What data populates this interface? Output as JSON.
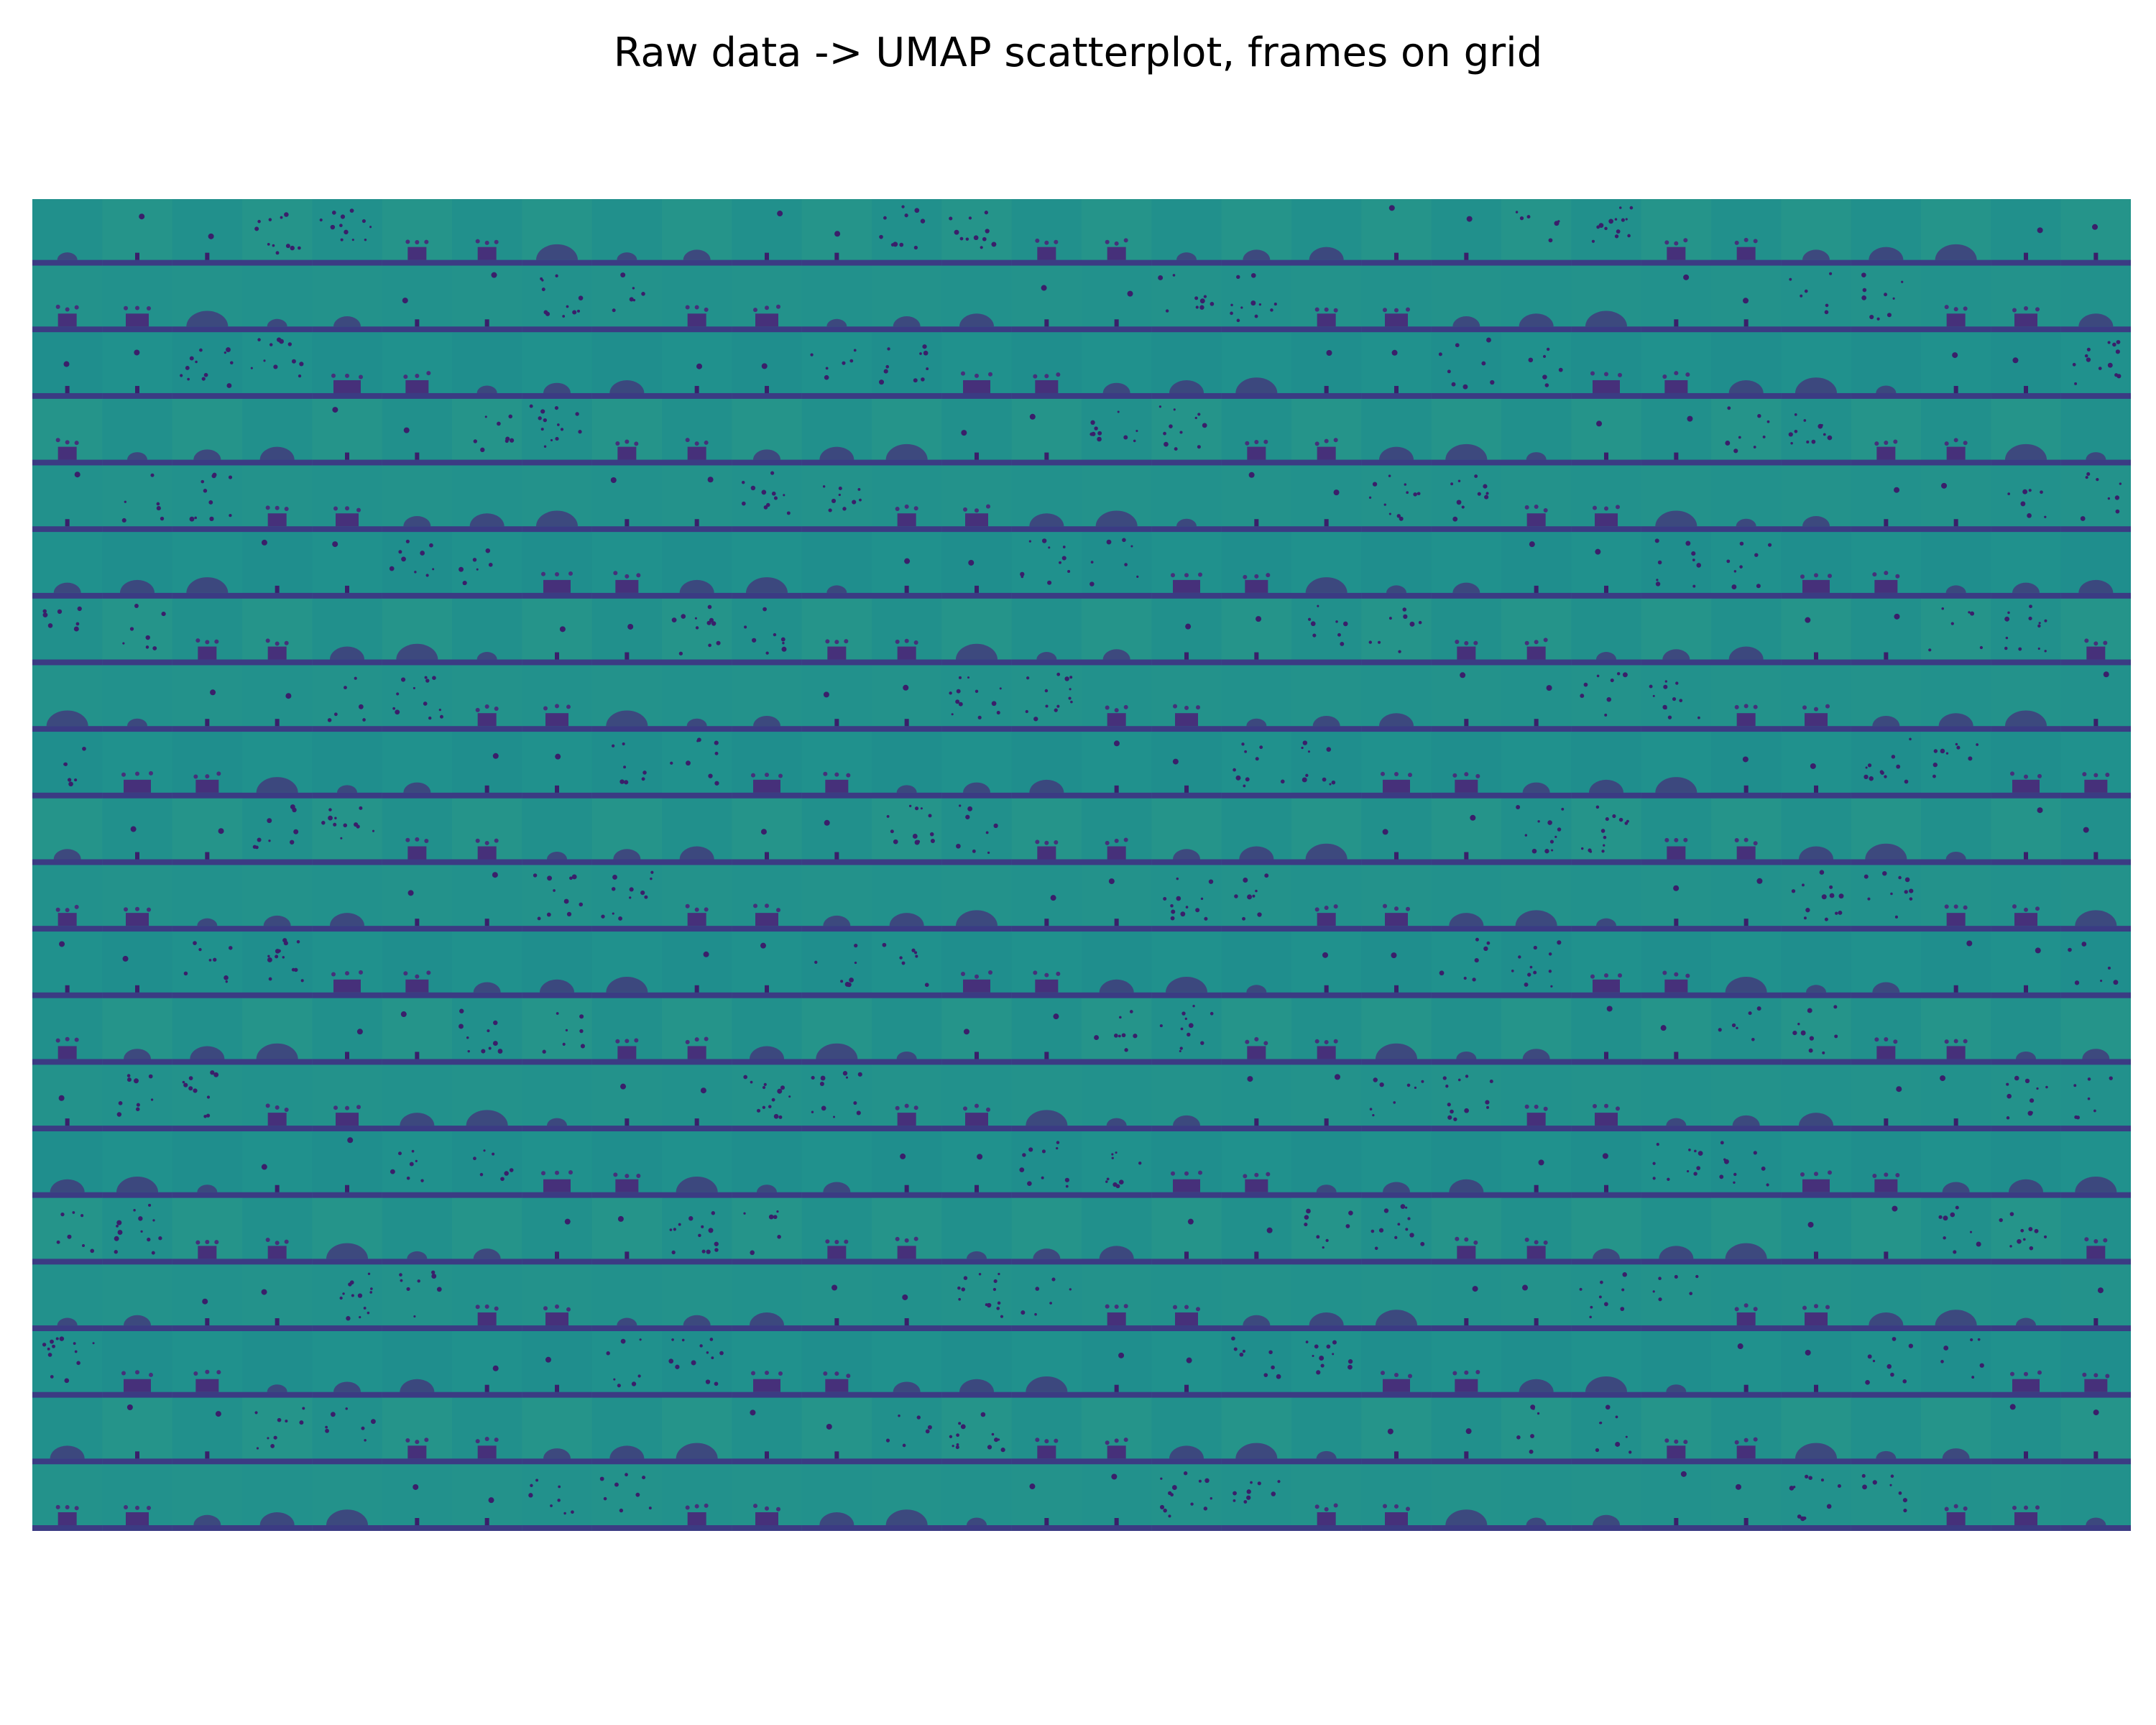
{
  "figure": {
    "title": "Raw data -> UMAP scatterplot, frames on grid"
  },
  "grid": {
    "rows": 20,
    "columns": 30,
    "colormap": "viridis",
    "background_color": "#21908c",
    "ground_color": "#3b3b83",
    "droplet_color": "#46307a",
    "dark_color": "#3a1f6a"
  }
}
